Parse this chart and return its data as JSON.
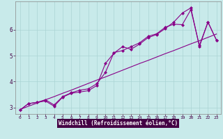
{
  "xlabel": "Windchill (Refroidissement éolien,°C)",
  "background_color": "#c8eaea",
  "line_color": "#880088",
  "xlim": [
    -0.5,
    23.5
  ],
  "ylim": [
    2.75,
    7.1
  ],
  "xticks": [
    0,
    1,
    2,
    3,
    4,
    5,
    6,
    7,
    8,
    9,
    10,
    11,
    12,
    13,
    14,
    15,
    16,
    17,
    18,
    19,
    20,
    21,
    22,
    23
  ],
  "yticks": [
    3,
    4,
    5,
    6
  ],
  "grid_color": "#aad4d4",
  "x_data": [
    0,
    1,
    2,
    3,
    4,
    5,
    6,
    7,
    8,
    9,
    10,
    11,
    12,
    13,
    14,
    15,
    16,
    17,
    18,
    19,
    20,
    21,
    22,
    23
  ],
  "y_line1": [
    2.9,
    3.15,
    3.2,
    3.25,
    3.05,
    3.4,
    3.55,
    3.6,
    3.65,
    3.85,
    4.7,
    5.1,
    5.35,
    5.25,
    5.45,
    5.7,
    5.82,
    6.05,
    6.3,
    6.65,
    6.85,
    5.35,
    6.3,
    5.6
  ],
  "y_line2": [
    2.9,
    3.15,
    3.2,
    3.3,
    3.1,
    3.42,
    3.57,
    3.67,
    3.72,
    3.92,
    4.35,
    5.12,
    5.2,
    5.35,
    5.5,
    5.75,
    5.85,
    6.1,
    6.22,
    6.2,
    6.78,
    5.4,
    6.3,
    5.6
  ],
  "y_regression": [
    2.92,
    3.05,
    3.17,
    3.3,
    3.42,
    3.55,
    3.67,
    3.8,
    3.93,
    4.06,
    4.18,
    4.31,
    4.44,
    4.57,
    4.7,
    4.82,
    4.95,
    5.08,
    5.2,
    5.33,
    5.46,
    5.58,
    5.71,
    5.84
  ],
  "xlabel_bg": "#440044",
  "xlabel_fg": "#ffffff",
  "tick_color": "#440044"
}
